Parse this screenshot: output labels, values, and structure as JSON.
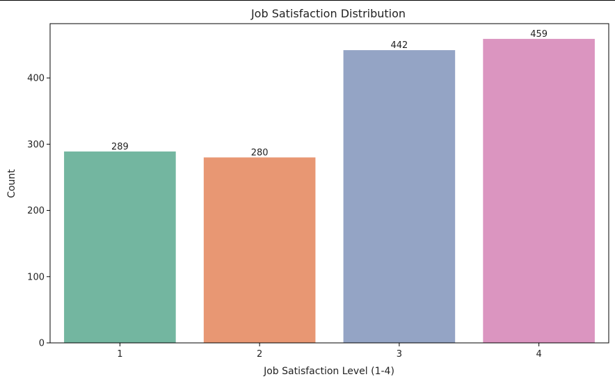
{
  "chart_data": {
    "type": "bar",
    "title": "Job Satisfaction Distribution",
    "xlabel": "Job Satisfaction Level (1-4)",
    "ylabel": "Count",
    "categories": [
      "1",
      "2",
      "3",
      "4"
    ],
    "values": [
      289,
      280,
      442,
      459
    ],
    "data_labels": [
      "289",
      "280",
      "442",
      "459"
    ],
    "colors": [
      "#73b6a0",
      "#e89773",
      "#94a4c5",
      "#db95c0"
    ],
    "ylim": [
      0,
      482
    ],
    "yticks": [
      0,
      100,
      200,
      300,
      400
    ],
    "ytick_labels": [
      "0",
      "100",
      "200",
      "300",
      "400"
    ],
    "grid": false,
    "legend": "none"
  }
}
